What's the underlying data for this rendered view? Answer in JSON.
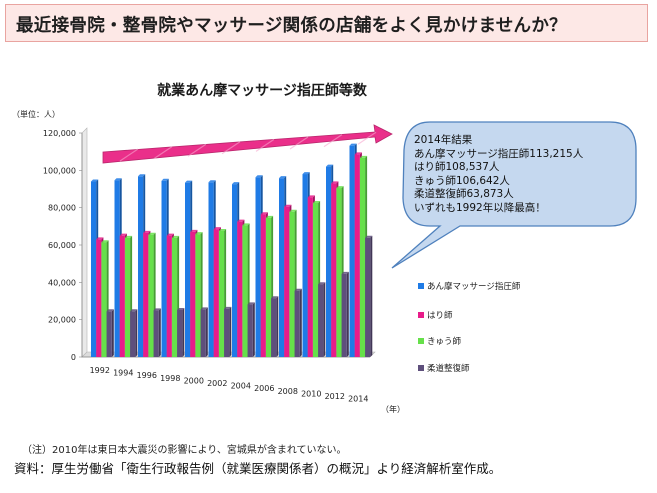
{
  "banner": {
    "title": "最近接骨院・整骨院やマッサージ関係の店舗をよく見かけませんか？"
  },
  "callout": {
    "lines": [
      "2014年結果",
      "あん摩マッサージ指圧師113,215人",
      "はり師108,537人",
      "きゅう師106,642人",
      "柔道整復師63,873人",
      "いずれも1992年以降最高！"
    ]
  },
  "footer": {
    "note": "（注）2010年は東日本大震災の影響により、宮城県が含まれていない。",
    "source": "資料：厚生労働省「衛生行政報告例（就業医療関係者）の概況」より経済解析室作成。"
  },
  "colors": {
    "banner_bg": "#fde8e6",
    "arrow_fill": "#e8197e",
    "callout_bg": "#c5d8ef",
    "series": [
      "#1f7be6",
      "#e81c8a",
      "#66e04a",
      "#5e4f7c"
    ]
  },
  "chart_data": {
    "type": "bar",
    "title": "就業あん摩マッサージ指圧師等数",
    "unit_label": "（単位：人）",
    "x_unit": "（年）",
    "categories": [
      "1992",
      "1994",
      "1996",
      "1998",
      "2000",
      "2002",
      "2004",
      "2006",
      "2008",
      "2010",
      "2012",
      "2014"
    ],
    "ylim": [
      0,
      120000
    ],
    "yticks": [
      "0",
      "20,000",
      "40,000",
      "60,000",
      "80,000",
      "100,000",
      "120,000"
    ],
    "grid": false,
    "legend_position": "right",
    "series": [
      {
        "name": "あん摩マッサージ指圧師",
        "values": [
          94000,
          94700,
          96800,
          94400,
          93400,
          93600,
          92600,
          96300,
          95800,
          98000,
          102000,
          113215
        ]
      },
      {
        "name": "はり師",
        "values": [
          63000,
          65000,
          66500,
          65000,
          67000,
          68500,
          72500,
          76500,
          80500,
          85500,
          93000,
          108537
        ]
      },
      {
        "name": "きゅう師",
        "values": [
          61500,
          63800,
          65500,
          63800,
          65800,
          67500,
          70500,
          74500,
          77800,
          82500,
          90500,
          106642
        ]
      },
      {
        "name": "柔道整復師",
        "values": [
          24500,
          24500,
          25000,
          25200,
          25500,
          25800,
          28200,
          31500,
          35500,
          39000,
          44500,
          63873
        ]
      }
    ]
  }
}
